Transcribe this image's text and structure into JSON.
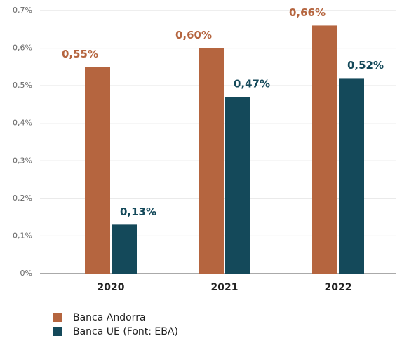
{
  "chart_data": {
    "type": "bar",
    "categories": [
      "2020",
      "2021",
      "2022"
    ],
    "series": [
      {
        "name": "Banca Andorra",
        "color": "#b5653f",
        "values": [
          0.55,
          0.6,
          0.66
        ],
        "value_labels": [
          "0,55%",
          "0,60%",
          "0,66%"
        ]
      },
      {
        "name": "Banca UE (Font: EBA)",
        "color": "#14495a",
        "values": [
          0.13,
          0.47,
          0.52
        ],
        "value_labels": [
          "0,13%",
          "0,47%",
          "0,52%"
        ]
      }
    ],
    "ylim": [
      0,
      0.7
    ],
    "yticks": [
      {
        "value": 0,
        "label": "0%"
      },
      {
        "value": 0.1,
        "label": "0,1%"
      },
      {
        "value": 0.2,
        "label": "0,2%"
      },
      {
        "value": 0.3,
        "label": "0,3%"
      },
      {
        "value": 0.4,
        "label": "0,4%"
      },
      {
        "value": 0.5,
        "label": "0,5%"
      },
      {
        "value": 0.6,
        "label": "0,6%"
      },
      {
        "value": 0.7,
        "label": "0,7%"
      }
    ],
    "grid": true,
    "legend": "bottom-left"
  }
}
